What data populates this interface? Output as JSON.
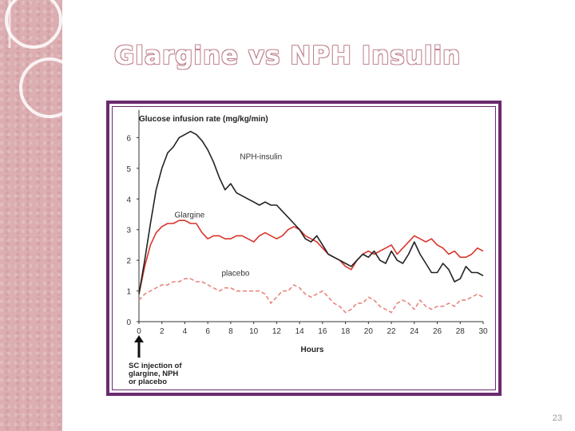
{
  "slide": {
    "title": "Glargine vs NPH Insulin",
    "page_number": "23"
  },
  "chart_data": {
    "type": "line",
    "title": "Glucose infusion rate (mg/kg/min)",
    "xlabel": "Hours",
    "ylabel": "Glucose infusion rate (mg/kg/min)",
    "xlim": [
      0,
      30
    ],
    "ylim": [
      0,
      7
    ],
    "x_ticks": [
      0,
      2,
      4,
      6,
      8,
      10,
      12,
      14,
      16,
      18,
      20,
      22,
      24,
      26,
      28,
      30
    ],
    "y_ticks": [
      0,
      1,
      2,
      3,
      4,
      5,
      6
    ],
    "annotation": [
      "SC injection of",
      "glargine, NPH",
      "or placebo"
    ],
    "series": [
      {
        "name": "NPH-insulin",
        "color": "#222222",
        "style": "solid",
        "x": [
          0,
          0.5,
          1,
          1.5,
          2,
          2.5,
          3,
          3.5,
          4,
          4.5,
          5,
          5.5,
          6,
          6.5,
          7,
          7.5,
          8,
          8.5,
          9,
          9.5,
          10,
          10.5,
          11,
          11.5,
          12,
          12.5,
          13,
          13.5,
          14,
          14.5,
          15,
          15.5,
          16,
          16.5,
          17,
          17.5,
          18,
          18.5,
          19,
          19.5,
          20,
          20.5,
          21,
          21.5,
          22,
          22.5,
          23,
          23.5,
          24,
          24.5,
          25,
          25.5,
          26,
          26.5,
          27,
          27.5,
          28,
          28.5,
          29,
          29.5,
          30
        ],
        "values": [
          0.9,
          2.0,
          3.2,
          4.3,
          5.0,
          5.5,
          5.7,
          6.0,
          6.1,
          6.2,
          6.1,
          5.9,
          5.6,
          5.2,
          4.7,
          4.3,
          4.5,
          4.2,
          4.1,
          4.0,
          3.9,
          3.8,
          3.9,
          3.8,
          3.8,
          3.6,
          3.4,
          3.2,
          3.0,
          2.7,
          2.6,
          2.8,
          2.5,
          2.2,
          2.1,
          2.0,
          1.9,
          1.8,
          2.0,
          2.2,
          2.1,
          2.3,
          2.0,
          1.9,
          2.3,
          2.0,
          1.9,
          2.2,
          2.6,
          2.2,
          1.9,
          1.6,
          1.6,
          1.9,
          1.7,
          1.3,
          1.4,
          1.8,
          1.6,
          1.6,
          1.5
        ]
      },
      {
        "name": "Glargine",
        "color": "#d9342b",
        "style": "solid",
        "x": [
          0,
          0.5,
          1,
          1.5,
          2,
          2.5,
          3,
          3.5,
          4,
          4.5,
          5,
          5.5,
          6,
          6.5,
          7,
          7.5,
          8,
          8.5,
          9,
          9.5,
          10,
          10.5,
          11,
          11.5,
          12,
          12.5,
          13,
          13.5,
          14,
          14.5,
          15,
          15.5,
          16,
          16.5,
          17,
          17.5,
          18,
          18.5,
          19,
          19.5,
          20,
          20.5,
          21,
          21.5,
          22,
          22.5,
          23,
          23.5,
          24,
          24.5,
          25,
          25.5,
          26,
          26.5,
          27,
          27.5,
          28,
          28.5,
          29,
          29.5,
          30
        ],
        "values": [
          0.9,
          1.8,
          2.5,
          2.9,
          3.1,
          3.2,
          3.2,
          3.3,
          3.3,
          3.2,
          3.2,
          2.9,
          2.7,
          2.8,
          2.8,
          2.7,
          2.7,
          2.8,
          2.8,
          2.7,
          2.6,
          2.8,
          2.9,
          2.8,
          2.7,
          2.8,
          3.0,
          3.1,
          3.0,
          2.8,
          2.7,
          2.6,
          2.4,
          2.2,
          2.1,
          2.0,
          1.8,
          1.7,
          2.0,
          2.2,
          2.3,
          2.2,
          2.3,
          2.4,
          2.5,
          2.2,
          2.4,
          2.6,
          2.8,
          2.7,
          2.6,
          2.7,
          2.5,
          2.4,
          2.2,
          2.3,
          2.1,
          2.1,
          2.2,
          2.4,
          2.3
        ]
      },
      {
        "name": "placebo",
        "color": "#e8857d",
        "style": "dashed",
        "x": [
          0,
          0.5,
          1,
          1.5,
          2,
          2.5,
          3,
          3.5,
          4,
          4.5,
          5,
          5.5,
          6,
          6.5,
          7,
          7.5,
          8,
          8.5,
          9,
          9.5,
          10,
          10.5,
          11,
          11.5,
          12,
          12.5,
          13,
          13.5,
          14,
          14.5,
          15,
          15.5,
          16,
          16.5,
          17,
          17.5,
          18,
          18.5,
          19,
          19.5,
          20,
          20.5,
          21,
          21.5,
          22,
          22.5,
          23,
          23.5,
          24,
          24.5,
          25,
          25.5,
          26,
          26.5,
          27,
          27.5,
          28,
          28.5,
          29,
          29.5,
          30
        ],
        "values": [
          0.7,
          0.9,
          1.0,
          1.1,
          1.2,
          1.2,
          1.3,
          1.3,
          1.4,
          1.4,
          1.3,
          1.3,
          1.2,
          1.1,
          1.0,
          1.1,
          1.1,
          1.0,
          1.0,
          1.0,
          1.0,
          1.0,
          0.9,
          0.6,
          0.8,
          1.0,
          1.0,
          1.2,
          1.1,
          0.9,
          0.8,
          0.9,
          1.0,
          0.8,
          0.6,
          0.5,
          0.3,
          0.4,
          0.6,
          0.6,
          0.8,
          0.7,
          0.5,
          0.4,
          0.3,
          0.6,
          0.7,
          0.6,
          0.4,
          0.7,
          0.5,
          0.4,
          0.5,
          0.5,
          0.6,
          0.5,
          0.7,
          0.7,
          0.8,
          0.9,
          0.8
        ]
      }
    ]
  }
}
